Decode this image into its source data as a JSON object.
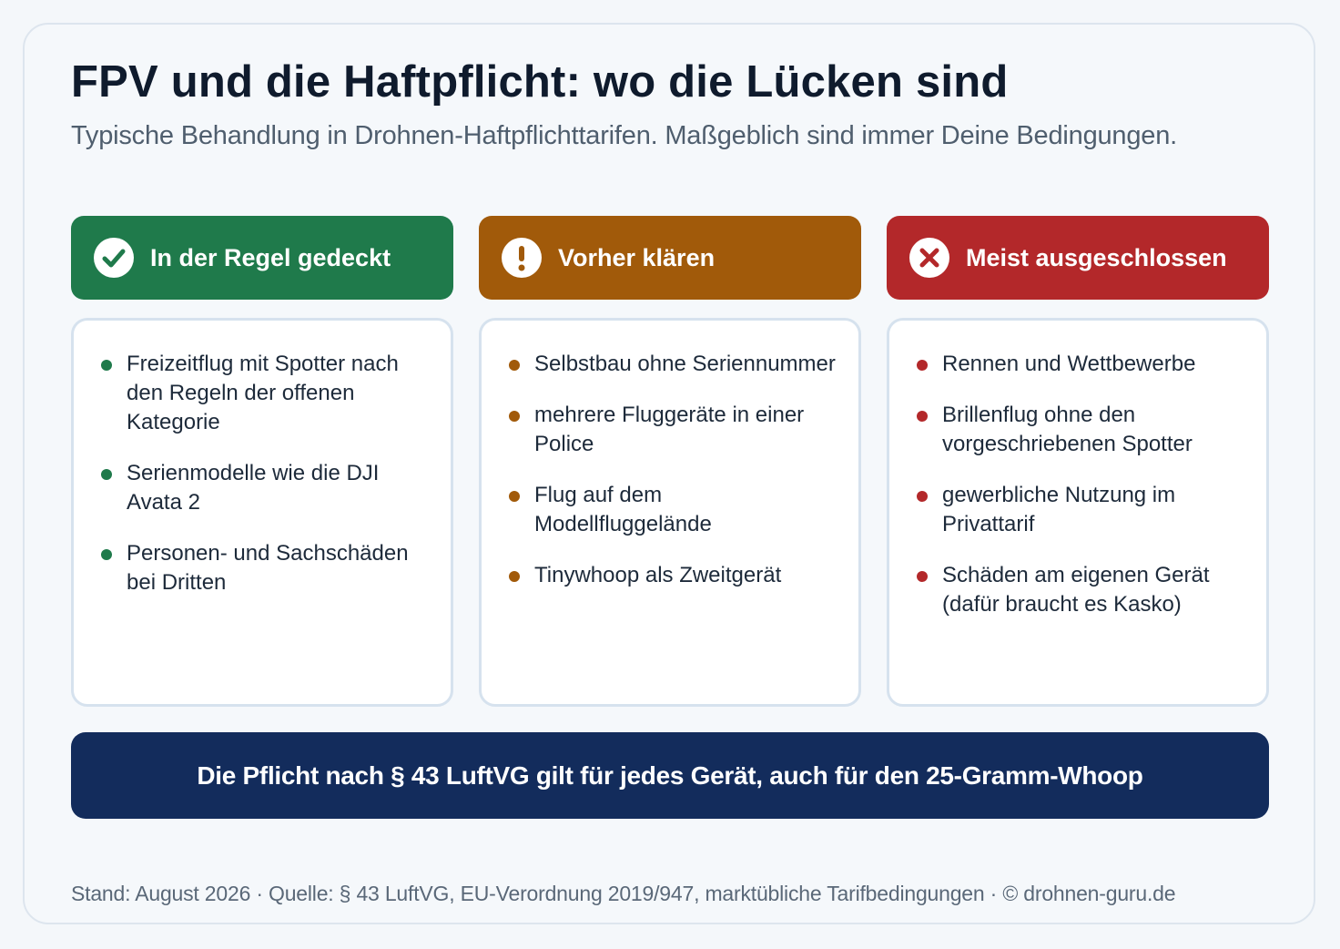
{
  "header": {
    "title": "FPV und die Haftpflicht: wo die Lücken sind",
    "subtitle": "Typische Behandlung in Drohnen-Haftpflichttarifen. Maßgeblich sind immer Deine Bedingungen."
  },
  "columns": [
    {
      "label": "In der Regel gedeckt",
      "icon": "check-circle-icon",
      "color": "#1f7a4b",
      "items": [
        "Freizeitflug mit Spotter nach den Regeln der offenen Kategorie",
        "Serienmodelle wie die DJI Avata 2",
        "Personen- und Sachschäden bei Dritten"
      ]
    },
    {
      "label": "Vorher klären",
      "icon": "exclamation-circle-icon",
      "color": "#a15a0a",
      "items": [
        "Selbstbau ohne Seriennummer",
        "mehrere Fluggeräte in einer Police",
        "Flug auf dem Modellfluggelände",
        "Tinywhoop als Zweitgerät"
      ]
    },
    {
      "label": "Meist ausgeschlossen",
      "icon": "x-circle-icon",
      "color": "#b3282a",
      "items": [
        "Rennen und Wettbewerbe",
        "Brillenflug ohne den vorgeschriebenen Spotter",
        "gewerbliche Nutzung im Privattarif",
        "Schäden am eigenen Gerät (dafür braucht es Kasko)"
      ]
    }
  ],
  "banner": {
    "text": "Die Pflicht nach § 43 LuftVG gilt für jedes Gerät, auch für den 25-Gramm-Whoop",
    "color": "#132c5c"
  },
  "footer": {
    "text": "Stand: August 2026 · Quelle: § 43 LuftVG, EU-Verordnung 2019/947, marktübliche Tarifbedingungen · © drohnen-guru.de"
  }
}
